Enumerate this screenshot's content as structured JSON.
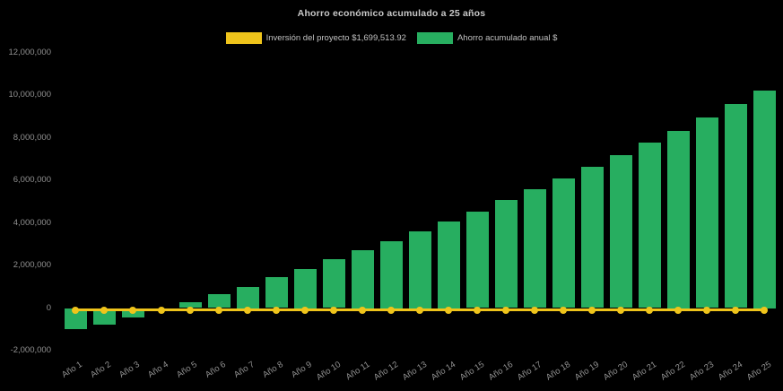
{
  "title": "Ahorro económico acumulado a 25 años",
  "colors": {
    "background": "#000000",
    "bar_green": "#27AE60",
    "line_yellow": "#EFC41B",
    "title_text": "#c9c9c9",
    "legend_text": "#c2c2c2",
    "axis_text": "#919191"
  },
  "legend": {
    "items": [
      {
        "label": "Inversión del proyecto $1,699,513.92",
        "color": "#EFC41B",
        "series": "investment-line"
      },
      {
        "label": "Ahorro acumulado anual $",
        "color": "#27AE60",
        "series": "savings-bars"
      }
    ]
  },
  "chart_data": {
    "type": "bar",
    "title": "Ahorro económico acumulado a 25 años",
    "xlabel": "",
    "ylabel": "",
    "grid": false,
    "legend_position": "top",
    "ylim": [
      -2000000,
      12000000
    ],
    "ytick_step": 2000000,
    "yticks": [
      {
        "value": 12000000,
        "label": "12,000,000"
      },
      {
        "value": 10000000,
        "label": "10,000,000"
      },
      {
        "value": 8000000,
        "label": "8,000,000"
      },
      {
        "value": 6000000,
        "label": "6,000,000"
      },
      {
        "value": 4000000,
        "label": "4,000,000"
      },
      {
        "value": 2000000,
        "label": "2,000,000"
      },
      {
        "value": 0,
        "label": "0"
      },
      {
        "value": -2000000,
        "label": "-2,000,000"
      }
    ],
    "categories": [
      "Año 1",
      "Año 2",
      "Año 3",
      "Año 4",
      "Año 5",
      "Año 6",
      "Año 7",
      "Año 8",
      "Año 9",
      "Año 10",
      "Año 11",
      "Año 12",
      "Año 13",
      "Año 14",
      "Año 15",
      "Año 16",
      "Año 17",
      "Año 18",
      "Año 19",
      "Año 20",
      "Año 21",
      "Año 22",
      "Año 23",
      "Año 24",
      "Año 25"
    ],
    "series": [
      {
        "name": "Ahorro acumulado anual $",
        "type": "bar",
        "color": "#27AE60",
        "values": [
          -1000000,
          -780000,
          -430000,
          -60000,
          290000,
          670000,
          1000000,
          1440000,
          1850000,
          2280000,
          2700000,
          3150000,
          3600000,
          4050000,
          4510000,
          5070000,
          5560000,
          6070000,
          6620000,
          7160000,
          7760000,
          8300000,
          8940000,
          9560000,
          10200000
        ]
      },
      {
        "name": "Inversión del proyecto $1,699,513.92",
        "type": "line",
        "color": "#EFC41B",
        "marker": "circle",
        "values": [
          0,
          0,
          0,
          0,
          0,
          0,
          0,
          0,
          0,
          0,
          0,
          0,
          0,
          0,
          0,
          0,
          0,
          0,
          0,
          0,
          0,
          0,
          0,
          0,
          0
        ]
      }
    ]
  }
}
